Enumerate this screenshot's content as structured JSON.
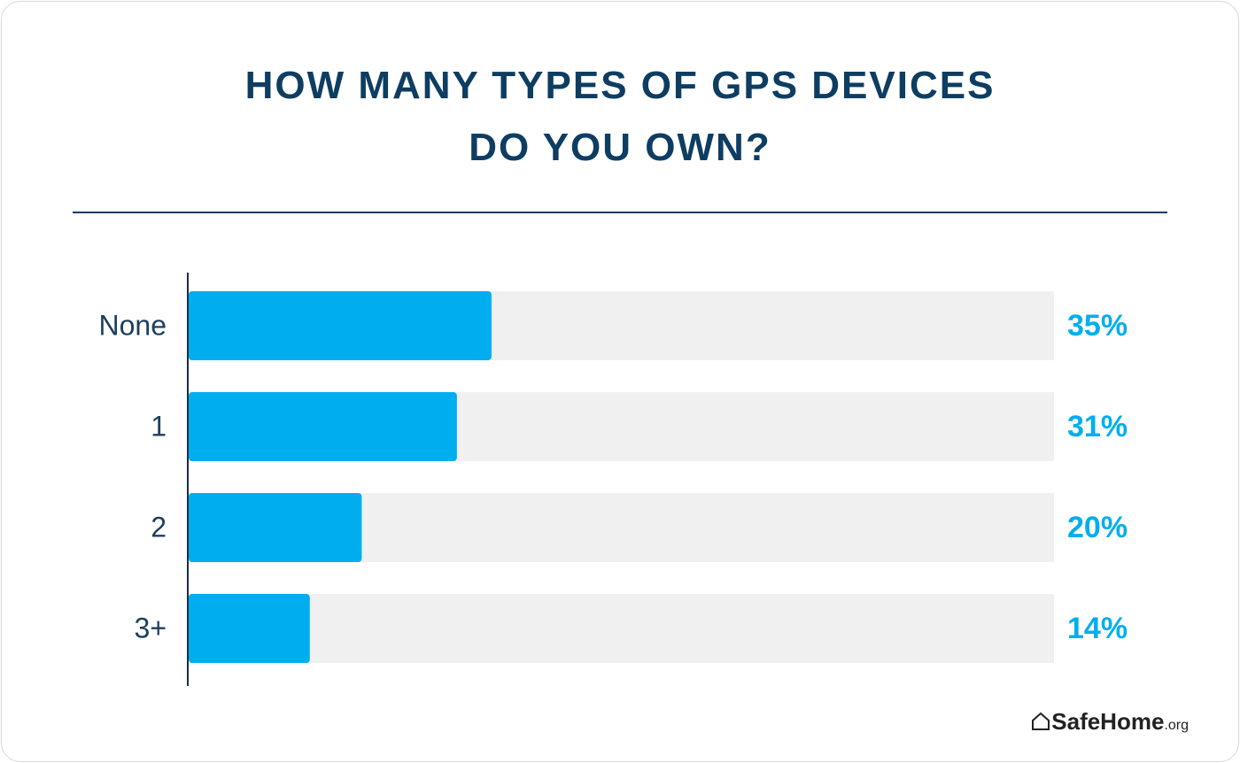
{
  "chart_data": {
    "type": "hbar",
    "title": "HOW MANY TYPES OF GPS DEVICES DO YOU OWN?",
    "categories": [
      "None",
      "1",
      "2",
      "3+"
    ],
    "values": [
      35,
      31,
      20,
      14
    ],
    "value_labels": [
      "35%",
      "31%",
      "20%",
      "14%"
    ],
    "color": "#00aeef",
    "track_color": "#f0f0f0",
    "xlim": [
      0,
      100
    ],
    "brand": {
      "name": "SafeHome",
      "suffix": ".org"
    }
  }
}
